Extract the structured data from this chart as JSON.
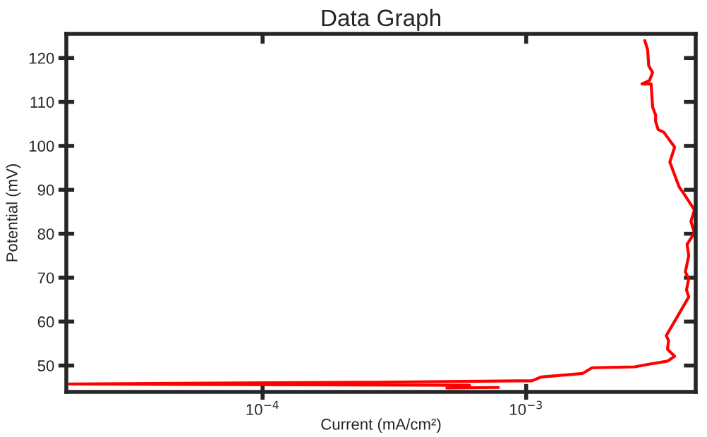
{
  "chart_data": {
    "type": "line",
    "title": "Data Graph",
    "xlabel": "Current (mA/cm²)",
    "ylabel": "Potential (mV)",
    "log": "x",
    "grid": false,
    "marker": "none",
    "line_style": "solid",
    "xlim": [
      1.8e-05,
      0.0044
    ],
    "ylim": [
      44,
      125.5
    ],
    "xticks": [
      {
        "value": 0.0001,
        "label": "10$^{−4}$"
      },
      {
        "value": 0.001,
        "label": "10$^{−3}$"
      }
    ],
    "yticks": [
      50,
      60,
      70,
      80,
      90,
      100,
      110,
      120
    ],
    "series": [
      {
        "color": "#ff0000",
        "x": [
          0.000785,
          0.0005,
          0.00061,
          1.85e-05,
          0.00027,
          0.000925,
          0.00105,
          0.00114,
          0.00164,
          0.00178,
          0.00258,
          0.00292,
          0.00344,
          0.00366,
          0.00344,
          0.00347,
          0.0034,
          0.00373,
          0.00414,
          0.00406,
          0.00414,
          0.00402,
          0.00414,
          0.00408,
          0.00435,
          0.00422,
          0.00435,
          0.00397,
          0.00381,
          0.00351,
          0.00366,
          0.00333,
          0.00317,
          0.0031,
          0.0031,
          0.00302,
          0.00298,
          0.00275,
          0.00294,
          0.00302,
          0.00292,
          0.00289,
          0.00282
        ],
        "values": [
          45.0,
          44.9,
          45.5,
          45.8,
          46.2,
          46.5,
          46.5,
          47.4,
          48.2,
          49.5,
          49.7,
          50.3,
          51.0,
          52.1,
          53.7,
          55.7,
          56.8,
          60.9,
          65.6,
          67.2,
          69.8,
          71.3,
          75.0,
          77.6,
          80.2,
          82.8,
          85.4,
          89.1,
          90.6,
          96.3,
          99.7,
          103.1,
          103.7,
          105.5,
          107.0,
          108.8,
          114.1,
          114.1,
          114.9,
          116.7,
          118.2,
          121.9,
          124.0
        ]
      }
    ]
  }
}
